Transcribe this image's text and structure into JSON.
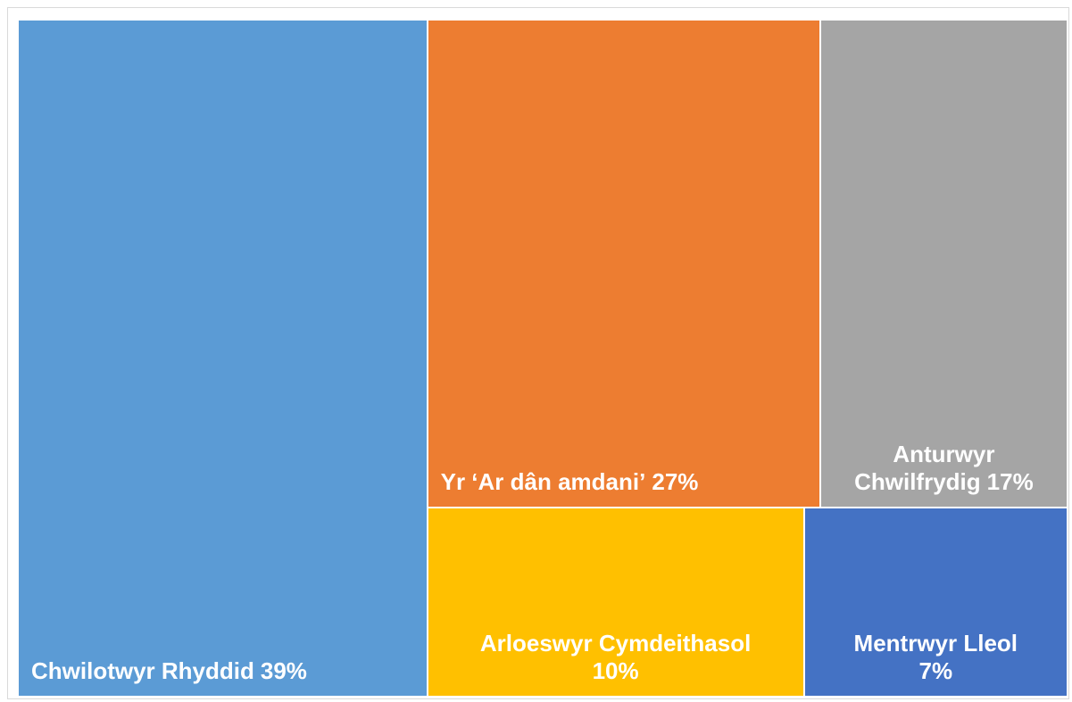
{
  "chart_data": {
    "type": "treemap",
    "categories": [
      "Chwilotwyr Rhyddid",
      "Yr ‘Ar dân amdani’",
      "Anturwyr Chwilfrydig",
      "Arloeswyr Cymdeithasol",
      "Mentrwyr Lleol"
    ],
    "values": [
      39,
      27,
      17,
      10,
      7
    ],
    "value_labels": [
      "39%",
      "27%",
      "17%",
      "10%",
      "7%"
    ],
    "colors": [
      "#5b9bd5",
      "#ed7d31",
      "#a5a5a5",
      "#ffc000",
      "#4472c4"
    ]
  }
}
